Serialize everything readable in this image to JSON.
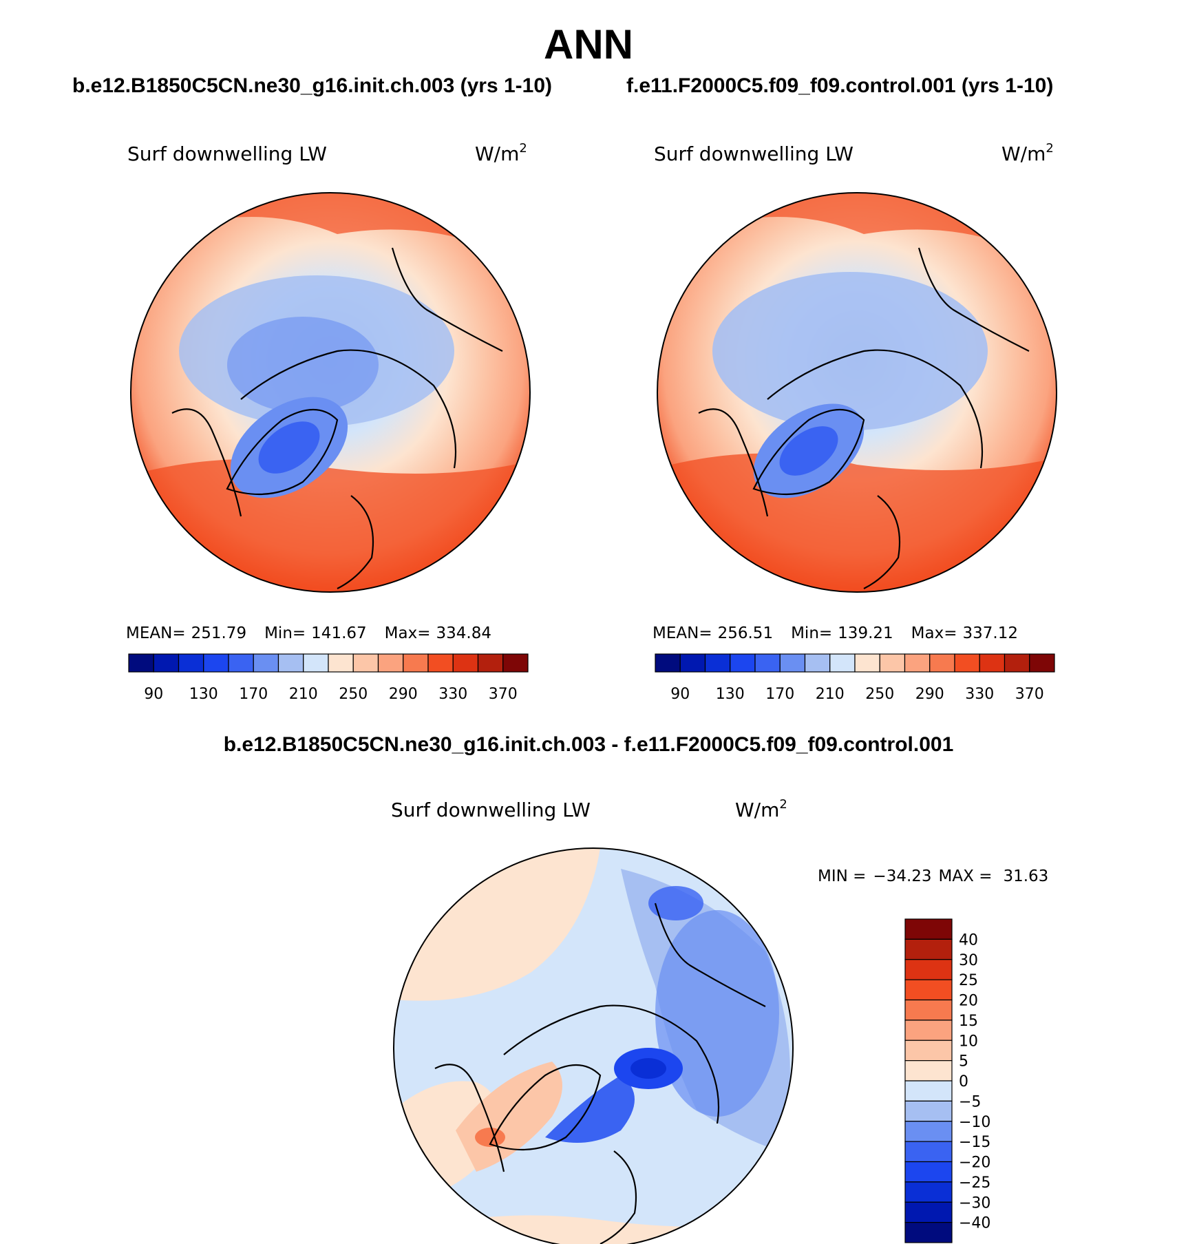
{
  "title": "ANN",
  "panels": [
    {
      "case_title": "b.e12.B1850C5CN.ne30_g16.init.ch.003 (yrs 1-10)",
      "variable": "Surf downwelling LW",
      "units_base": "W/m",
      "units_exp": "2",
      "stats": {
        "mean_label": "MEAN=",
        "mean": "251.79",
        "min_label": "Min=",
        "min": "141.67",
        "max_label": "Max=",
        "max": "334.84"
      }
    },
    {
      "case_title": "f.e11.F2000C5.f09_f09.control.001 (yrs 1-10)",
      "variable": "Surf downwelling LW",
      "units_base": "W/m",
      "units_exp": "2",
      "stats": {
        "mean_label": "MEAN=",
        "mean": "256.51",
        "min_label": "Min=",
        "min": "139.21",
        "max_label": "Max=",
        "max": "337.12"
      }
    }
  ],
  "difference": {
    "case_title": "b.e12.B1850C5CN.ne30_g16.init.ch.003 - f.e11.F2000C5.f09_f09.control.001",
    "variable": "Surf downwelling LW",
    "units_base": "W/m",
    "units_exp": "2",
    "min_label": "MIN =",
    "min": "−34.23",
    "max_label": "MAX =",
    "max": "31.63"
  },
  "colorbar_abs": {
    "colors": [
      "#000b7e",
      "#0018b0",
      "#0a2fd6",
      "#1c46ef",
      "#3a63f2",
      "#6a8ff2",
      "#a6bff2",
      "#d3e5fa",
      "#fde4d0",
      "#fcc6a8",
      "#fba37f",
      "#f77a4f",
      "#f24e22",
      "#dd3313",
      "#b3200d",
      "#7e0606"
    ],
    "tick_labels": [
      "90",
      "130",
      "170",
      "210",
      "250",
      "290",
      "330",
      "370"
    ]
  },
  "colorbar_diff": {
    "colors": [
      "#7e0606",
      "#b3200d",
      "#dd3313",
      "#f24e22",
      "#f77a4f",
      "#fba37f",
      "#fcc6a8",
      "#fde4d0",
      "#d3e5fa",
      "#a6bff2",
      "#6a8ff2",
      "#3a63f2",
      "#1c46ef",
      "#0a2fd6",
      "#0018b0",
      "#000b7e"
    ],
    "tick_labels": [
      "40",
      "30",
      "25",
      "20",
      "15",
      "10",
      "5",
      "0",
      "−5",
      "−10",
      "−15",
      "−20",
      "−25",
      "−30",
      "−40"
    ]
  }
}
